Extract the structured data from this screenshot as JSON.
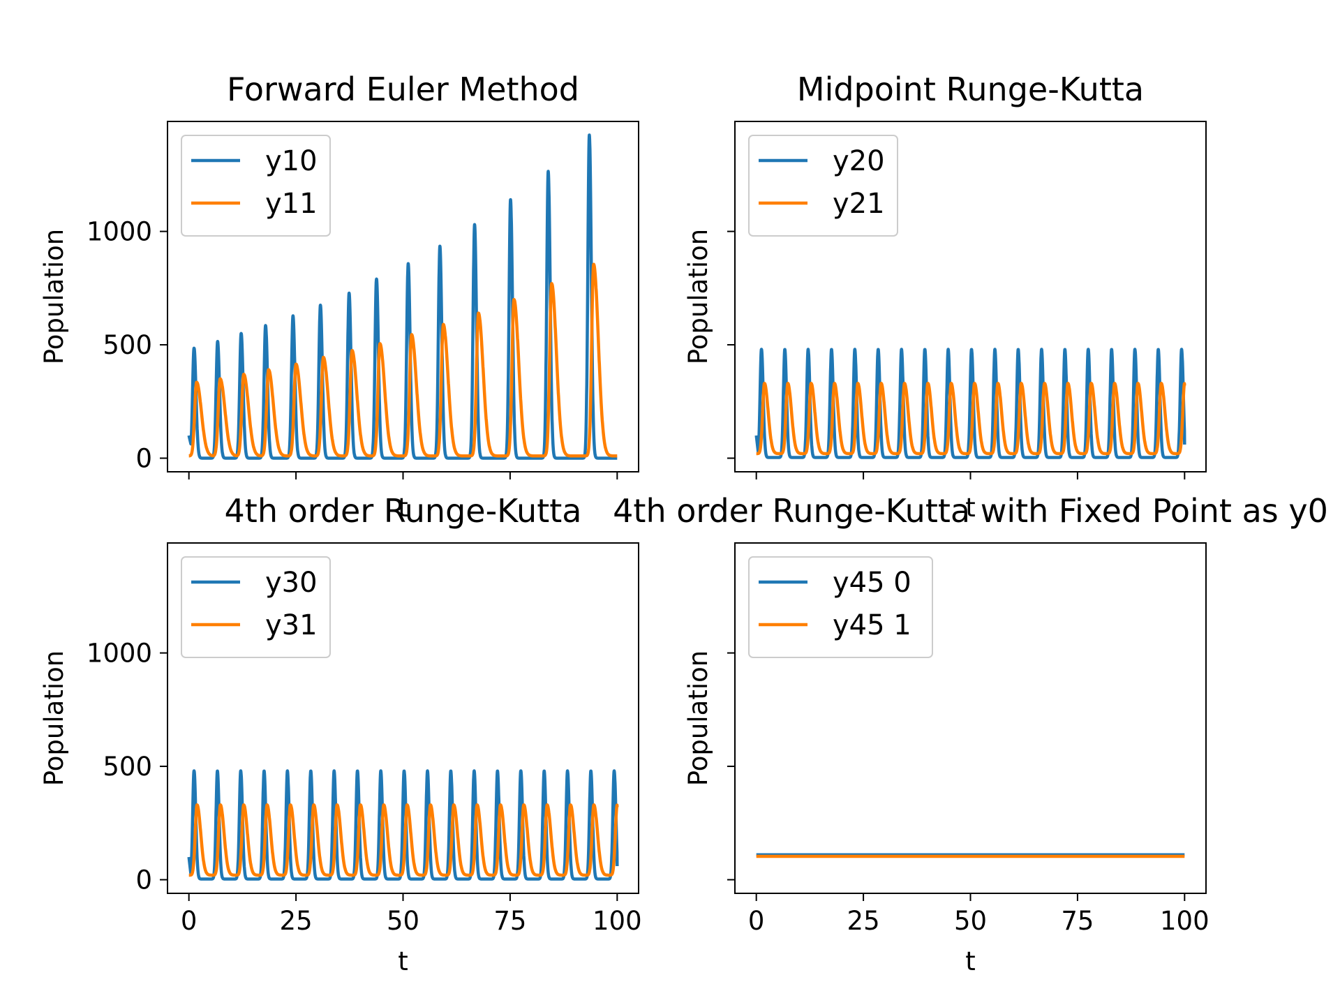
{
  "chart_data": [
    {
      "type": "line",
      "title": "Forward Euler Method",
      "xlabel": "t",
      "ylabel": "Population",
      "xlim": [
        -5,
        105
      ],
      "ylim": [
        -60,
        1485
      ],
      "x_ticks": [
        0,
        25,
        50,
        75,
        100
      ],
      "y_ticks": [
        0,
        500,
        1000
      ],
      "x_tick_labels": false,
      "y_tick_labels": true,
      "legend": "upper-left",
      "series": [
        {
          "name": "y10",
          "color": "#1f77b4",
          "kind": "euler-prey",
          "period": 6.5,
          "x0": 0,
          "x1": 100,
          "base": 0,
          "peaks": [
            [
              1.2,
              485
            ],
            [
              6.7,
              515
            ],
            [
              12.2,
              550
            ],
            [
              17.9,
              585
            ],
            [
              24.3,
              628
            ],
            [
              30.7,
              675
            ],
            [
              37.4,
              728
            ],
            [
              43.8,
              790
            ],
            [
              51.2,
              858
            ],
            [
              58.6,
              935
            ],
            [
              66.7,
              1030
            ],
            [
              75.1,
              1140
            ],
            [
              83.9,
              1265
            ],
            [
              93.5,
              1425
            ]
          ]
        },
        {
          "name": "y11",
          "color": "#ff7f00",
          "kind": "euler-pred",
          "period": 6.5,
          "x0": 0,
          "x1": 100,
          "base": 10,
          "peaks": [
            [
              1.8,
              335
            ],
            [
              7.3,
              350
            ],
            [
              12.8,
              370
            ],
            [
              18.6,
              390
            ],
            [
              25.0,
              415
            ],
            [
              31.4,
              445
            ],
            [
              38.1,
              475
            ],
            [
              44.6,
              505
            ],
            [
              52.0,
              545
            ],
            [
              59.4,
              590
            ],
            [
              67.6,
              640
            ],
            [
              75.9,
              700
            ],
            [
              84.7,
              770
            ],
            [
              94.5,
              855
            ]
          ]
        }
      ]
    },
    {
      "type": "line",
      "title": "Midpoint Runge-Kutta",
      "xlabel": "t",
      "ylabel": "Population",
      "xlim": [
        -5,
        105
      ],
      "ylim": [
        -60,
        1485
      ],
      "x_ticks": [
        0,
        25,
        50,
        75,
        100
      ],
      "y_ticks": [
        0,
        500,
        1000
      ],
      "x_tick_labels": false,
      "y_tick_labels": false,
      "legend": "upper-left",
      "series": [
        {
          "name": "y20",
          "color": "#1f77b4",
          "kind": "periodic-prey",
          "period": 5.45,
          "first_peak": 1.2,
          "x0": 0,
          "x1": 100,
          "low": 3,
          "high": 480,
          "start": 100,
          "end": 60
        },
        {
          "name": "y21",
          "color": "#ff7f00",
          "kind": "periodic-pred",
          "period": 5.45,
          "first_peak": 1.9,
          "x0": 0,
          "x1": 100,
          "low": 20,
          "high": 330,
          "start": 20,
          "end": 320
        }
      ]
    },
    {
      "type": "line",
      "title": "4th order Runge-Kutta",
      "xlabel": "t",
      "ylabel": "Population",
      "xlim": [
        -5,
        105
      ],
      "ylim": [
        -60,
        1485
      ],
      "x_ticks": [
        0,
        25,
        50,
        75,
        100
      ],
      "y_ticks": [
        0,
        500,
        1000
      ],
      "x_tick_labels": true,
      "y_tick_labels": true,
      "legend": "upper-left",
      "series": [
        {
          "name": "y30",
          "color": "#1f77b4",
          "kind": "periodic-prey",
          "period": 5.45,
          "first_peak": 1.2,
          "x0": 0,
          "x1": 100,
          "low": 3,
          "high": 480,
          "start": 100,
          "end": 60
        },
        {
          "name": "y31",
          "color": "#ff7f00",
          "kind": "periodic-pred",
          "period": 5.45,
          "first_peak": 1.9,
          "x0": 0,
          "x1": 100,
          "low": 20,
          "high": 330,
          "start": 20,
          "end": 320
        }
      ]
    },
    {
      "type": "line",
      "title": "4th order Runge-Kutta with Fixed Point as y0",
      "xlabel": "t",
      "ylabel": "Population",
      "xlim": [
        -5,
        105
      ],
      "ylim": [
        -60,
        1485
      ],
      "x_ticks": [
        0,
        25,
        50,
        75,
        100
      ],
      "y_ticks": [
        0,
        500,
        1000
      ],
      "x_tick_labels": true,
      "y_tick_labels": false,
      "legend": "upper-left",
      "series": [
        {
          "name": "y45 0",
          "color": "#1f77b4",
          "kind": "constant",
          "x0": 0,
          "x1": 100,
          "value": 110
        },
        {
          "name": "y45 1",
          "color": "#ff7f00",
          "kind": "constant",
          "x0": 0,
          "x1": 100,
          "value": 103
        }
      ]
    }
  ]
}
